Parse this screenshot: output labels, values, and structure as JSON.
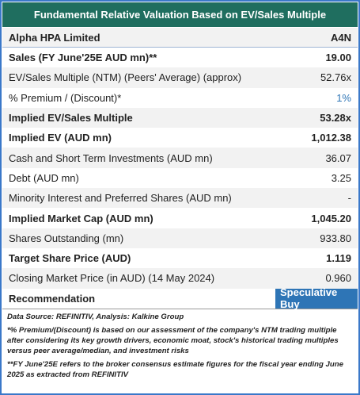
{
  "header": {
    "title": "Fundamental Relative Valuation Based on EV/Sales Multiple",
    "company": "Alpha HPA Limited",
    "ticker": "A4N"
  },
  "table": {
    "rows": [
      [
        "Sales (FY June'25E AUD mn)**",
        "19.00"
      ],
      [
        "EV/Sales Multiple (NTM)  (Peers' Average) (approx)",
        "52.76x"
      ],
      [
        "% Premium / (Discount)*",
        "1%"
      ],
      [
        "Implied EV/Sales Multiple",
        "53.28x"
      ],
      [
        "Implied EV (AUD mn)",
        "1,012.38"
      ],
      [
        "Cash and Short Term Investments (AUD mn)",
        "36.07"
      ],
      [
        "Debt (AUD mn)",
        "3.25"
      ],
      [
        "Minority Interest and Preferred Shares (AUD mn)",
        "-"
      ],
      [
        "Implied Market Cap (AUD mn)",
        "1,045.20"
      ],
      [
        "Shares Outstanding (mn)",
        "933.80"
      ],
      [
        "Target Share Price (AUD)",
        "1.119"
      ],
      [
        "Closing Market Price (in AUD) (14 May 2024)",
        "0.960"
      ],
      [
        "Recommendation",
        "Speculative Buy"
      ]
    ]
  },
  "notes": [
    "Data Source: REFINITIV, Analysis: Kalkine Group",
    "*% Premium/(Discount) is based on our assessment of the company's NTM trading multiple after considering its key growth drivers, economic moat, stock's historical trading multiples versus peer average/median, and investment risks",
    "**FY June'25E refers to the broker consensus estimate figures for the fiscal year ending June 2025 as extracted from REFINITIV"
  ]
}
